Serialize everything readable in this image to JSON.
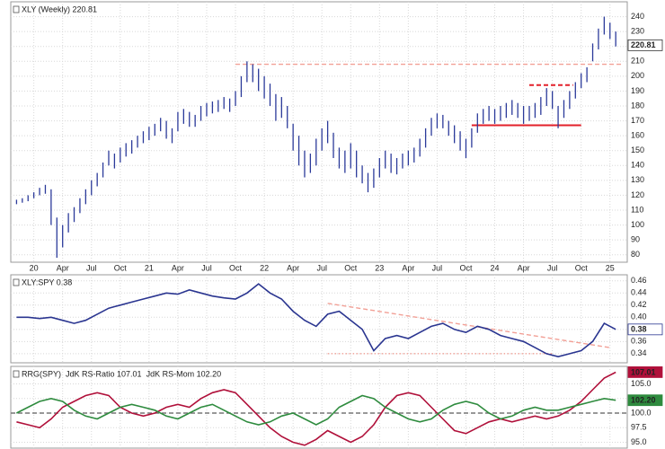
{
  "chart_data": [
    {
      "type": "ohlc",
      "title": "XLY (Weekly) 220.81",
      "color": "#2b3a9a",
      "last_value": 220.81,
      "xlim": [
        2019.8,
        2025.15
      ],
      "xticks": [
        {
          "value": 2020,
          "label": "20"
        },
        {
          "value": 2020.25,
          "label": "Apr"
        },
        {
          "value": 2020.5,
          "label": "Jul"
        },
        {
          "value": 2020.75,
          "label": "Oct"
        },
        {
          "value": 2021,
          "label": "21"
        },
        {
          "value": 2021.25,
          "label": "Apr"
        },
        {
          "value": 2021.5,
          "label": "Jul"
        },
        {
          "value": 2021.75,
          "label": "Oct"
        },
        {
          "value": 2022,
          "label": "22"
        },
        {
          "value": 2022.25,
          "label": "Apr"
        },
        {
          "value": 2022.5,
          "label": "Jul"
        },
        {
          "value": 2022.75,
          "label": "Oct"
        },
        {
          "value": 2023,
          "label": "23"
        },
        {
          "value": 2023.25,
          "label": "Apr"
        },
        {
          "value": 2023.5,
          "label": "Jul"
        },
        {
          "value": 2023.75,
          "label": "Oct"
        },
        {
          "value": 2024,
          "label": "24"
        },
        {
          "value": 2024.25,
          "label": "Apr"
        },
        {
          "value": 2024.5,
          "label": "Jul"
        },
        {
          "value": 2024.75,
          "label": "Oct"
        },
        {
          "value": 2025,
          "label": "25"
        }
      ],
      "ylim": [
        75,
        250
      ],
      "yticks": [
        80,
        90,
        100,
        110,
        120,
        130,
        140,
        150,
        160,
        170,
        180,
        190,
        200,
        210,
        220,
        230,
        240
      ],
      "grid": true,
      "x": [
        2019.85,
        2019.9,
        2019.95,
        2020,
        2020.05,
        2020.1,
        2020.15,
        2020.2,
        2020.25,
        2020.3,
        2020.35,
        2020.4,
        2020.45,
        2020.5,
        2020.55,
        2020.6,
        2020.65,
        2020.7,
        2020.75,
        2020.8,
        2020.85,
        2020.9,
        2020.95,
        2021,
        2021.05,
        2021.1,
        2021.15,
        2021.2,
        2021.25,
        2021.3,
        2021.35,
        2021.4,
        2021.45,
        2021.5,
        2021.55,
        2021.6,
        2021.65,
        2021.7,
        2021.75,
        2021.8,
        2021.85,
        2021.9,
        2021.95,
        2022,
        2022.05,
        2022.1,
        2022.15,
        2022.2,
        2022.25,
        2022.3,
        2022.35,
        2022.4,
        2022.45,
        2022.5,
        2022.55,
        2022.6,
        2022.65,
        2022.7,
        2022.75,
        2022.8,
        2022.85,
        2022.9,
        2022.95,
        2023,
        2023.05,
        2023.1,
        2023.15,
        2023.2,
        2023.25,
        2023.3,
        2023.35,
        2023.4,
        2023.45,
        2023.5,
        2023.55,
        2023.6,
        2023.65,
        2023.7,
        2023.75,
        2023.8,
        2023.85,
        2023.9,
        2023.95,
        2024,
        2024.05,
        2024.1,
        2024.15,
        2024.2,
        2024.25,
        2024.3,
        2024.35,
        2024.4,
        2024.45,
        2024.5,
        2024.55,
        2024.6,
        2024.65,
        2024.7,
        2024.75,
        2024.8,
        2024.85,
        2024.9,
        2024.95,
        2025,
        2025.05
      ],
      "high": [
        117,
        118,
        120,
        122,
        125,
        127,
        124,
        105,
        100,
        108,
        112,
        118,
        124,
        130,
        135,
        142,
        150,
        148,
        152,
        155,
        157,
        160,
        163,
        166,
        168,
        172,
        170,
        165,
        176,
        178,
        176,
        174,
        180,
        182,
        183,
        184,
        186,
        185,
        190,
        200,
        210,
        208,
        205,
        200,
        195,
        188,
        186,
        180,
        168,
        160,
        150,
        148,
        158,
        165,
        170,
        162,
        152,
        150,
        155,
        150,
        140,
        135,
        138,
        145,
        150,
        148,
        145,
        148,
        150,
        152,
        158,
        165,
        172,
        175,
        174,
        170,
        167,
        163,
        158,
        165,
        175,
        178,
        180,
        178,
        180,
        182,
        184,
        182,
        180,
        180,
        182,
        186,
        192,
        190,
        180,
        184,
        190,
        196,
        202,
        206,
        222,
        232,
        240,
        236,
        230
      ],
      "low": [
        114,
        115,
        116,
        118,
        120,
        121,
        100,
        78,
        85,
        95,
        102,
        108,
        114,
        120,
        126,
        132,
        140,
        138,
        142,
        146,
        148,
        152,
        155,
        157,
        160,
        163,
        158,
        155,
        163,
        168,
        166,
        166,
        170,
        173,
        175,
        176,
        178,
        176,
        180,
        186,
        196,
        196,
        190,
        185,
        180,
        170,
        172,
        165,
        150,
        140,
        132,
        135,
        140,
        150,
        155,
        145,
        138,
        135,
        138,
        132,
        128,
        122,
        125,
        132,
        138,
        135,
        134,
        138,
        140,
        142,
        146,
        152,
        160,
        165,
        165,
        160,
        155,
        150,
        145,
        152,
        162,
        168,
        170,
        168,
        170,
        172,
        174,
        172,
        168,
        170,
        172,
        174,
        180,
        178,
        165,
        172,
        178,
        185,
        192,
        196,
        210,
        218,
        228,
        225,
        220
      ],
      "lines": [
        {
          "x": [
            2021.75,
            2025.1
          ],
          "y": [
            208,
            208
          ],
          "color": "#f2a096",
          "style": "dashed"
        },
        {
          "x": [
            2024.3,
            2024.68
          ],
          "y": [
            194,
            194
          ],
          "color": "#e3202a",
          "style": "dashed"
        },
        {
          "x": [
            2023.8,
            2024.75
          ],
          "y": [
            167,
            167
          ],
          "color": "#e3202a",
          "style": "solid"
        }
      ]
    },
    {
      "type": "line",
      "title": "XLY:SPY 0.38",
      "ylim": [
        0.325,
        0.47
      ],
      "yticks": [
        0.34,
        0.36,
        0.38,
        {
          "value": 0.4,
          "label": "0.40"
        },
        0.42,
        0.44,
        0.46
      ],
      "grid": true,
      "x": [
        2019.85,
        2019.95,
        2020.05,
        2020.15,
        2020.25,
        2020.35,
        2020.45,
        2020.55,
        2020.65,
        2020.75,
        2020.85,
        2020.95,
        2021.05,
        2021.15,
        2021.25,
        2021.35,
        2021.45,
        2021.55,
        2021.65,
        2021.75,
        2021.85,
        2021.95,
        2022.05,
        2022.15,
        2022.25,
        2022.35,
        2022.45,
        2022.55,
        2022.65,
        2022.75,
        2022.85,
        2022.95,
        2023.05,
        2023.15,
        2023.25,
        2023.35,
        2023.45,
        2023.55,
        2023.65,
        2023.75,
        2023.85,
        2023.95,
        2024.05,
        2024.15,
        2024.25,
        2024.35,
        2024.45,
        2024.55,
        2024.65,
        2024.75,
        2024.85,
        2024.95,
        2025.05
      ],
      "series": [
        {
          "color": "#2a3590",
          "last_value": 0.38,
          "values": [
            0.4,
            0.4,
            0.398,
            0.4,
            0.395,
            0.39,
            0.395,
            0.405,
            0.415,
            0.42,
            0.425,
            0.43,
            0.435,
            0.44,
            0.438,
            0.445,
            0.44,
            0.435,
            0.432,
            0.43,
            0.44,
            0.455,
            0.44,
            0.43,
            0.41,
            0.395,
            0.385,
            0.405,
            0.41,
            0.395,
            0.38,
            0.345,
            0.365,
            0.37,
            0.365,
            0.375,
            0.385,
            0.39,
            0.38,
            0.375,
            0.385,
            0.38,
            0.37,
            0.365,
            0.36,
            0.35,
            0.34,
            0.335,
            0.34,
            0.345,
            0.36,
            0.39,
            0.38
          ]
        }
      ],
      "lines": [
        {
          "x": [
            2022.55,
            2025.0
          ],
          "y": [
            0.423,
            0.35
          ],
          "color": "#f2a096",
          "style": "dashed"
        },
        {
          "x": [
            2022.55,
            2024.5
          ],
          "y": [
            0.34,
            0.34
          ],
          "color": "#f2a096",
          "style": "dotted"
        }
      ]
    },
    {
      "type": "line",
      "title": "RRG(SPY)",
      "ylim": [
        94,
        108
      ],
      "yticks": [
        {
          "value": 95,
          "label": "95.0"
        },
        97.5,
        {
          "value": 100,
          "label": "100.0"
        },
        102.5,
        {
          "value": 105,
          "label": "105.0"
        }
      ],
      "grid": true,
      "x": [
        2019.85,
        2019.95,
        2020.05,
        2020.15,
        2020.25,
        2020.35,
        2020.45,
        2020.55,
        2020.65,
        2020.75,
        2020.85,
        2020.95,
        2021.05,
        2021.15,
        2021.25,
        2021.35,
        2021.45,
        2021.55,
        2021.65,
        2021.75,
        2021.85,
        2021.95,
        2022.05,
        2022.15,
        2022.25,
        2022.35,
        2022.45,
        2022.55,
        2022.65,
        2022.75,
        2022.85,
        2022.95,
        2023.05,
        2023.15,
        2023.25,
        2023.35,
        2023.45,
        2023.55,
        2023.65,
        2023.75,
        2023.85,
        2023.95,
        2024.05,
        2024.15,
        2024.25,
        2024.35,
        2024.45,
        2024.55,
        2024.65,
        2024.75,
        2024.85,
        2024.95,
        2025.05
      ],
      "series": [
        {
          "name": "JdK RS-Ratio 107.01",
          "color": "#b0103a",
          "last_value": 107.01,
          "values": [
            98.5,
            98,
            97.5,
            99,
            101,
            102,
            103,
            103.5,
            103,
            101,
            100,
            99.5,
            100,
            101,
            101.5,
            101,
            102.5,
            103.5,
            104,
            103.5,
            101.5,
            99.5,
            97.5,
            96,
            95,
            94.5,
            95.5,
            97,
            96,
            95,
            96,
            98,
            101,
            103,
            103.5,
            103,
            101,
            99,
            97,
            96.5,
            97.5,
            98.5,
            99,
            98.5,
            99,
            99.5,
            99,
            99.5,
            100.5,
            102,
            104,
            106,
            107
          ]
        },
        {
          "name": "JdK RS-Mom 102.20",
          "color": "#2e8b3e",
          "last_value": {
            "value": 102.2,
            "label": "102.20"
          },
          "values": [
            100,
            101,
            102,
            102.5,
            102,
            100.5,
            99.5,
            99,
            100,
            101,
            101.5,
            101,
            100.5,
            99.5,
            99,
            100,
            101,
            101.5,
            100.5,
            99.5,
            98.5,
            98,
            98.5,
            99.5,
            100,
            99,
            98,
            99,
            101,
            102,
            103,
            102.5,
            101,
            100,
            99,
            98.5,
            99,
            100.5,
            101.5,
            102,
            101.5,
            100,
            99,
            99.5,
            100.5,
            101,
            100.5,
            100.5,
            101,
            101.5,
            102,
            102.5,
            102.2
          ]
        }
      ],
      "lines": [
        {
          "x": [
            2019.8,
            2025.15
          ],
          "y": [
            100,
            100
          ],
          "color": "#777777",
          "style": "dashed"
        }
      ]
    }
  ]
}
